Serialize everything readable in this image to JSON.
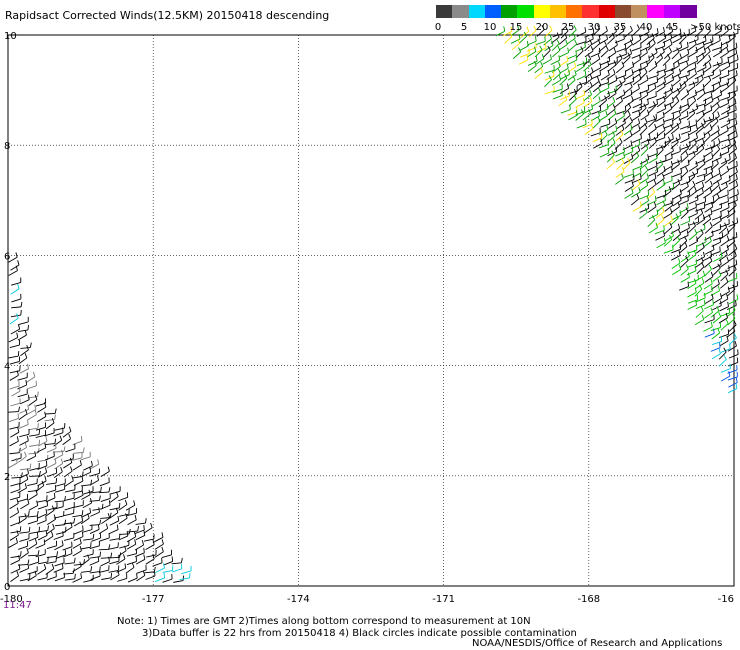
{
  "title": "Rapidsact Corrected Winds(12.5KM) 20150418 descending",
  "colorbar": {
    "colors": [
      "#3a3a3a",
      "#8a8a8a",
      "#00d8ff",
      "#0060ff",
      "#00a000",
      "#00e000",
      "#ffff00",
      "#ffc000",
      "#ff7000",
      "#ff3030",
      "#e00000",
      "#8a4a30",
      "#c09060",
      "#ff00ff",
      "#c000ff",
      "#7000a0"
    ],
    "labels": [
      "0",
      "5",
      "10",
      "15",
      "20",
      "25",
      "30",
      "35",
      "40",
      "45",
      ">50 knots"
    ]
  },
  "chart_data": {
    "type": "scatter",
    "title": "Rapidsact Corrected Winds(12.5KM) 20150418 descending",
    "xlim": [
      -180,
      -165
    ],
    "ylim": [
      0,
      10
    ],
    "x_ticks": [
      "-180",
      "-177",
      "-174",
      "-171",
      "-168",
      "-16"
    ],
    "y_ticks": [
      "0",
      "2",
      "4",
      "6",
      "8",
      "10"
    ],
    "grid": true,
    "swaths": [
      {
        "name": "",
        "lon": [
          -180,
          -179,
          -178,
          -177,
          -176.2,
          -179.5,
          -180
        ],
        "lat": [
          0,
          0,
          0,
          0,
          0,
          3.5,
          6
        ]
      },
      {
        "name": "",
        "lon": [
          -170,
          -168.6,
          -167,
          -165,
          -165,
          -166.5,
          -168,
          -170
        ],
        "lat": [
          10,
          10,
          10,
          10,
          3.2,
          6,
          8,
          10
        ]
      }
    ]
  },
  "time_label": "11:47",
  "notes": {
    "line1": "Note: 1) Times are GMT 2)Times along bottom correspond to measurement at 10N",
    "line2": "3)Data buffer is 22 hrs from 20150418 4) Black circles indicate possible contamination"
  },
  "credit": "NOAA/NESDIS/Office of Research and Applications"
}
